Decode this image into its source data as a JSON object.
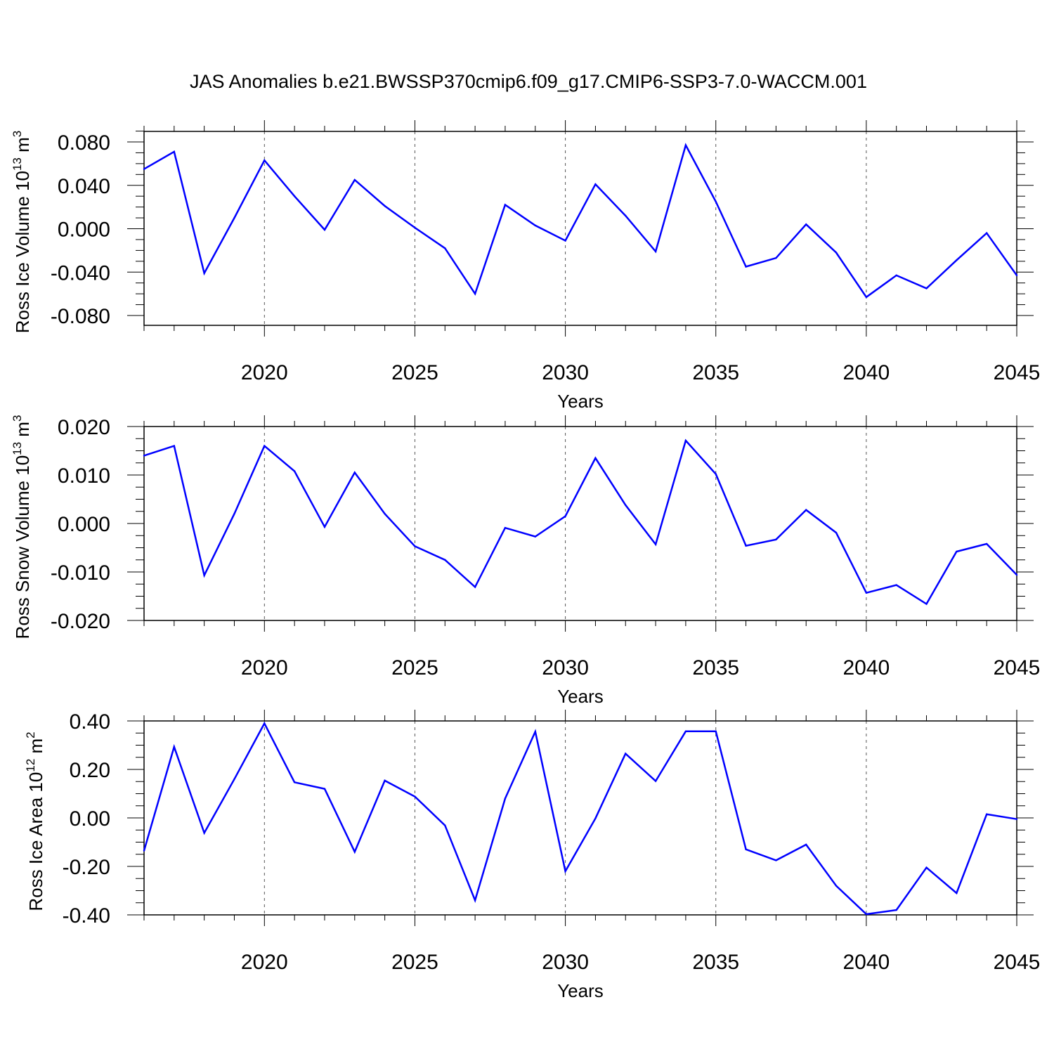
{
  "title": "JAS Anomalies b.e21.BWSSP370cmip6.f09_g17.CMIP6-SSP3-7.0-WACCM.001",
  "colors": {
    "line": "#0000ff",
    "axis": "#000000",
    "grid": "#555555"
  },
  "chart_data": [
    {
      "type": "line",
      "ylabel_main": "Ross Ice Volume 10",
      "ylabel_exp": "13",
      "ylabel_unit": " m",
      "ylabel_unit_exp": "3",
      "xlabel": "Years",
      "xlim": [
        2016,
        2045
      ],
      "ylim": [
        -0.09,
        0.09
      ],
      "yticks": [
        -0.08,
        -0.04,
        0.0,
        0.04,
        0.08
      ],
      "yticklabels": [
        "-0.080",
        "-0.040",
        "0.000",
        "0.040",
        "0.080"
      ],
      "xticks": [
        2020,
        2025,
        2030,
        2035,
        2040,
        2045
      ],
      "xticklabels": [
        "2020",
        "2025",
        "2030",
        "2035",
        "2040",
        "2045"
      ],
      "x": [
        2016,
        2017,
        2018,
        2019,
        2020,
        2021,
        2022,
        2023,
        2024,
        2025,
        2026,
        2027,
        2028,
        2029,
        2030,
        2031,
        2032,
        2033,
        2034,
        2035,
        2036,
        2037,
        2038,
        2039,
        2040,
        2041,
        2042,
        2043,
        2044,
        2045
      ],
      "values": [
        0.055,
        0.071,
        -0.041,
        0.01,
        0.063,
        0.03,
        -0.001,
        0.045,
        0.021,
        0.001,
        -0.018,
        -0.06,
        0.022,
        0.003,
        -0.011,
        0.041,
        0.012,
        -0.021,
        0.077,
        0.025,
        -0.035,
        -0.027,
        0.004,
        -0.022,
        -0.063,
        -0.043,
        -0.055,
        -0.029,
        -0.004,
        -0.043
      ]
    },
    {
      "type": "line",
      "ylabel_main": "Ross Snow Volume 10",
      "ylabel_exp": "13",
      "ylabel_unit": " m",
      "ylabel_unit_exp": "3",
      "xlabel": "Years",
      "xlim": [
        2016,
        2045
      ],
      "ylim": [
        -0.02,
        0.02
      ],
      "yticks": [
        -0.02,
        -0.01,
        0.0,
        0.01,
        0.02
      ],
      "yticklabels": [
        "-0.020",
        "-0.010",
        "0.000",
        "0.010",
        "0.020"
      ],
      "xticks": [
        2020,
        2025,
        2030,
        2035,
        2040,
        2045
      ],
      "xticklabels": [
        "2020",
        "2025",
        "2030",
        "2035",
        "2040",
        "2045"
      ],
      "x": [
        2016,
        2017,
        2018,
        2019,
        2020,
        2021,
        2022,
        2023,
        2024,
        2025,
        2026,
        2027,
        2028,
        2029,
        2030,
        2031,
        2032,
        2033,
        2034,
        2035,
        2036,
        2037,
        2038,
        2039,
        2040,
        2041,
        2042,
        2043,
        2044,
        2045
      ],
      "values": [
        0.014,
        0.016,
        -0.0107,
        0.002,
        0.016,
        0.0108,
        -0.0007,
        0.0105,
        0.002,
        -0.0047,
        -0.0075,
        -0.0131,
        -0.0009,
        -0.0027,
        0.0015,
        0.0135,
        0.0038,
        -0.0043,
        0.0171,
        0.0102,
        -0.0046,
        -0.0033,
        0.0028,
        -0.0019,
        -0.0143,
        -0.0127,
        -0.0166,
        -0.0058,
        -0.0042,
        -0.0106
      ]
    },
    {
      "type": "line",
      "ylabel_main": "Ross Ice Area 10",
      "ylabel_exp": "12",
      "ylabel_unit": " m",
      "ylabel_unit_exp": "2",
      "xlabel": "Years",
      "xlim": [
        2016,
        2045
      ],
      "ylim": [
        -0.4,
        0.4
      ],
      "yticks": [
        -0.4,
        -0.2,
        0.0,
        0.2,
        0.4
      ],
      "yticklabels": [
        "-0.40",
        "-0.20",
        "0.00",
        "0.20",
        "0.40"
      ],
      "xticks": [
        2020,
        2025,
        2030,
        2035,
        2040,
        2045
      ],
      "xticklabels": [
        "2020",
        "2025",
        "2030",
        "2035",
        "2040",
        "2045"
      ],
      "x": [
        2016,
        2017,
        2018,
        2019,
        2020,
        2021,
        2022,
        2023,
        2024,
        2025,
        2026,
        2027,
        2028,
        2029,
        2030,
        2031,
        2032,
        2033,
        2034,
        2035,
        2036,
        2037,
        2038,
        2039,
        2040,
        2041,
        2042,
        2043,
        2044,
        2045
      ],
      "values": [
        -0.135,
        0.293,
        -0.062,
        0.16,
        0.39,
        0.147,
        0.12,
        -0.14,
        0.154,
        0.088,
        -0.031,
        -0.34,
        0.08,
        0.356,
        -0.22,
        -0.002,
        0.265,
        0.152,
        0.357,
        0.357,
        -0.13,
        -0.175,
        -0.11,
        -0.28,
        -0.397,
        -0.38,
        -0.205,
        -0.31,
        0.015,
        -0.005
      ]
    }
  ]
}
